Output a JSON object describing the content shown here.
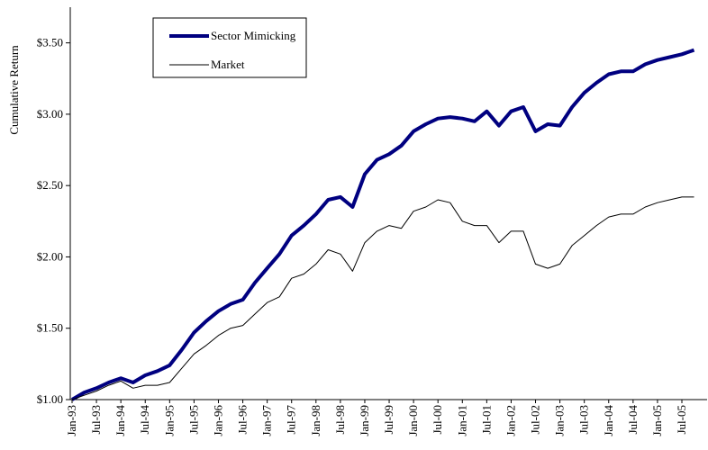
{
  "chart_data": {
    "type": "line",
    "y_label": "Cumulative Return",
    "categories": [
      "Jan-93",
      null,
      "Jul-93",
      null,
      "Jan-94",
      null,
      "Jul-94",
      null,
      "Jan-95",
      null,
      "Jul-95",
      null,
      "Jan-96",
      null,
      "Jul-96",
      null,
      "Jan-97",
      null,
      "Jul-97",
      null,
      "Jan-98",
      null,
      "Jul-98",
      null,
      "Jan-99",
      null,
      "Jul-99",
      null,
      "Jan-00",
      null,
      "Jul-00",
      null,
      "Jan-01",
      null,
      "Jul-01",
      null,
      "Jan-02",
      null,
      "Jul-02",
      null,
      "Jan-03",
      null,
      "Jul-03",
      null,
      "Jan-04",
      null,
      "Jul-04",
      null,
      "Jan-05",
      null,
      "Jul-05",
      null
    ],
    "series": [
      {
        "name": "Sector Mimicking",
        "color": "#000080",
        "values": [
          1.0,
          1.05,
          1.08,
          1.12,
          1.15,
          1.12,
          1.17,
          1.2,
          1.24,
          1.35,
          1.47,
          1.55,
          1.62,
          1.67,
          1.7,
          1.82,
          1.92,
          2.02,
          2.15,
          2.22,
          2.3,
          2.4,
          2.42,
          2.35,
          2.58,
          2.68,
          2.72,
          2.78,
          2.88,
          2.93,
          2.97,
          2.98,
          2.97,
          2.95,
          3.02,
          2.92,
          3.02,
          3.05,
          2.88,
          2.93,
          2.92,
          3.05,
          3.15,
          3.22,
          3.28,
          3.3,
          3.3,
          3.35,
          3.38,
          3.4,
          3.42,
          3.45
        ]
      },
      {
        "name": "Market",
        "color": "#000000",
        "values": [
          1.0,
          1.03,
          1.06,
          1.1,
          1.13,
          1.08,
          1.1,
          1.1,
          1.12,
          1.22,
          1.32,
          1.38,
          1.45,
          1.5,
          1.52,
          1.6,
          1.68,
          1.72,
          1.85,
          1.88,
          1.95,
          2.05,
          2.02,
          1.9,
          2.1,
          2.18,
          2.22,
          2.2,
          2.32,
          2.35,
          2.4,
          2.38,
          2.25,
          2.22,
          2.22,
          2.1,
          2.18,
          2.18,
          1.95,
          1.92,
          1.95,
          2.08,
          2.15,
          2.22,
          2.28,
          2.3,
          2.3,
          2.35,
          2.38,
          2.4,
          2.42,
          2.42
        ]
      }
    ],
    "ylim": [
      1.0,
      3.75
    ],
    "yticks": [
      {
        "value": 1.0,
        "label": "$1.00"
      },
      {
        "value": 1.5,
        "label": "$1.50"
      },
      {
        "value": 2.0,
        "label": "$2.00"
      },
      {
        "value": 2.5,
        "label": "$2.50"
      },
      {
        "value": 3.0,
        "label": "$3.00"
      },
      {
        "value": 3.5,
        "label": "$3.50"
      }
    ]
  }
}
